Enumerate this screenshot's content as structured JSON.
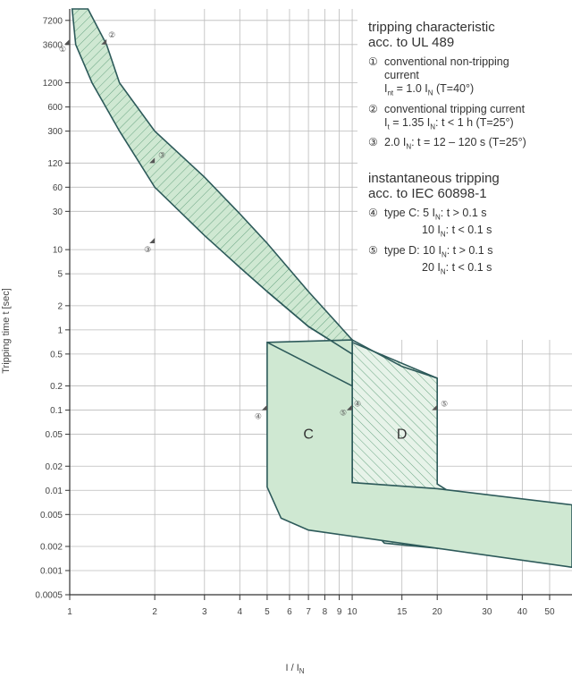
{
  "chart_data": {
    "type": "area",
    "title": "",
    "xlabel": "I / I",
    "xlabel_sub": "N",
    "ylabel": "Tripping time t [sec]",
    "x_scale": "log",
    "y_scale": "log",
    "xlim": [
      1,
      60
    ],
    "ylim": [
      0.0005,
      10000
    ],
    "grid": true,
    "x_ticks": [
      1,
      2,
      3,
      4,
      5,
      6,
      7,
      8,
      9,
      10,
      15,
      20,
      30,
      40,
      50
    ],
    "x_tick_labels": [
      "1",
      "2",
      "3",
      "4",
      "5",
      "6",
      "7",
      "8",
      "9",
      "10",
      "15",
      "20",
      "30",
      "40",
      "50"
    ],
    "y_ticks": [
      7200,
      3600,
      1200,
      600,
      300,
      120,
      60,
      30,
      10,
      5,
      2,
      1,
      0.5,
      0.2,
      0.1,
      0.05,
      0.02,
      0.01,
      0.005,
      0.002,
      0.001,
      0.0005
    ],
    "y_tick_labels": [
      "7200",
      "3600",
      "1200",
      "600",
      "300",
      "120",
      "60",
      "30",
      "10",
      "5",
      "2",
      "1",
      "0.5",
      "0.2",
      "0.1",
      "0.05",
      "0.02",
      "0.01",
      "0.005",
      "0.002",
      "0.001",
      "0.0005"
    ],
    "bands": {
      "thermal_lower": [
        [
          1.02,
          10000
        ],
        [
          1.05,
          3600
        ],
        [
          1.2,
          1200
        ],
        [
          1.5,
          300
        ],
        [
          2,
          60
        ],
        [
          3,
          15
        ],
        [
          4,
          6
        ],
        [
          5,
          3
        ],
        [
          7,
          1.1
        ],
        [
          10,
          0.5
        ],
        [
          15,
          0.25
        ],
        [
          20,
          0.2
        ],
        [
          30,
          0.15
        ]
      ],
      "thermal_upper": [
        [
          1.16,
          10000
        ],
        [
          1.35,
          3600
        ],
        [
          1.5,
          1200
        ],
        [
          2,
          300
        ],
        [
          3,
          80
        ],
        [
          4,
          28
        ],
        [
          5,
          12
        ],
        [
          7,
          3
        ],
        [
          10,
          0.75
        ],
        [
          15,
          0.35
        ],
        [
          20,
          0.25
        ]
      ],
      "type_C": {
        "low_current": 5,
        "high_current": 10,
        "lower_time": 0.1,
        "upper_time": 0.7
      },
      "type_D": {
        "low_current": 10,
        "high_current": 20,
        "lower_time": 0.1,
        "upper_time": 0.7
      }
    },
    "region_labels": [
      {
        "text": "C",
        "x": 7,
        "y": 0.05
      },
      {
        "text": "D",
        "x": 15,
        "y": 0.05
      }
    ],
    "markers": [
      {
        "label": "①",
        "x": 1.0,
        "y": 3600
      },
      {
        "label": "②",
        "x": 1.35,
        "y": 3600
      },
      {
        "label": "③",
        "x": 2.0,
        "y": 120
      },
      {
        "label": "③",
        "x": 2.0,
        "y": 12
      },
      {
        "label": "④",
        "x": 5,
        "y": 0.1
      },
      {
        "label": "④",
        "x": 10,
        "y": 0.1
      },
      {
        "label": "⑤",
        "x": 10,
        "y": 0.1
      },
      {
        "label": "⑤",
        "x": 20,
        "y": 0.1
      }
    ],
    "colors": {
      "band_fill": "#cfe8d2",
      "band_stroke": "#2d5a5a",
      "hatch": "#6aa583",
      "grid": "#bbbbbb"
    }
  },
  "legend": {
    "heading1": [
      "tripping characteristic",
      "acc. to UL 489"
    ],
    "item1": {
      "num": "①",
      "text": "conventional non-tripping",
      "text2": "current",
      "formula_main": "I",
      "formula_sub": "nt",
      "formula_rest": " = 1.0 I",
      "formula_sub2": "N",
      "formula_tail": " (T=40°)"
    },
    "item2": {
      "num": "②",
      "text": "conventional tripping current",
      "formula_main": "I",
      "formula_sub": "t",
      "formula_rest": " = 1.35 I",
      "formula_sub2": "N",
      "formula_tail": ": t < 1 h (T=25°)"
    },
    "item3": {
      "num": "③",
      "pre": "2.0 I",
      "sub": "N",
      "tail": ": t = 12 – 120 s (T=25°)"
    },
    "heading2": [
      "instantaneous tripping",
      "acc. to IEC 60898-1"
    ],
    "item4": {
      "num": "④",
      "pre": "type C: 5 I",
      "sub": "N",
      "tail": ": t > 0.1 s",
      "pre2": "10 I",
      "sub2": "N",
      "tail2": ": t < 0.1 s"
    },
    "item5": {
      "num": "⑤",
      "pre": "type D: 10 I",
      "sub": "N",
      "tail": ": t > 0.1 s",
      "pre2": "20 I",
      "sub2": "N",
      "tail2": ": t < 0.1 s"
    }
  }
}
